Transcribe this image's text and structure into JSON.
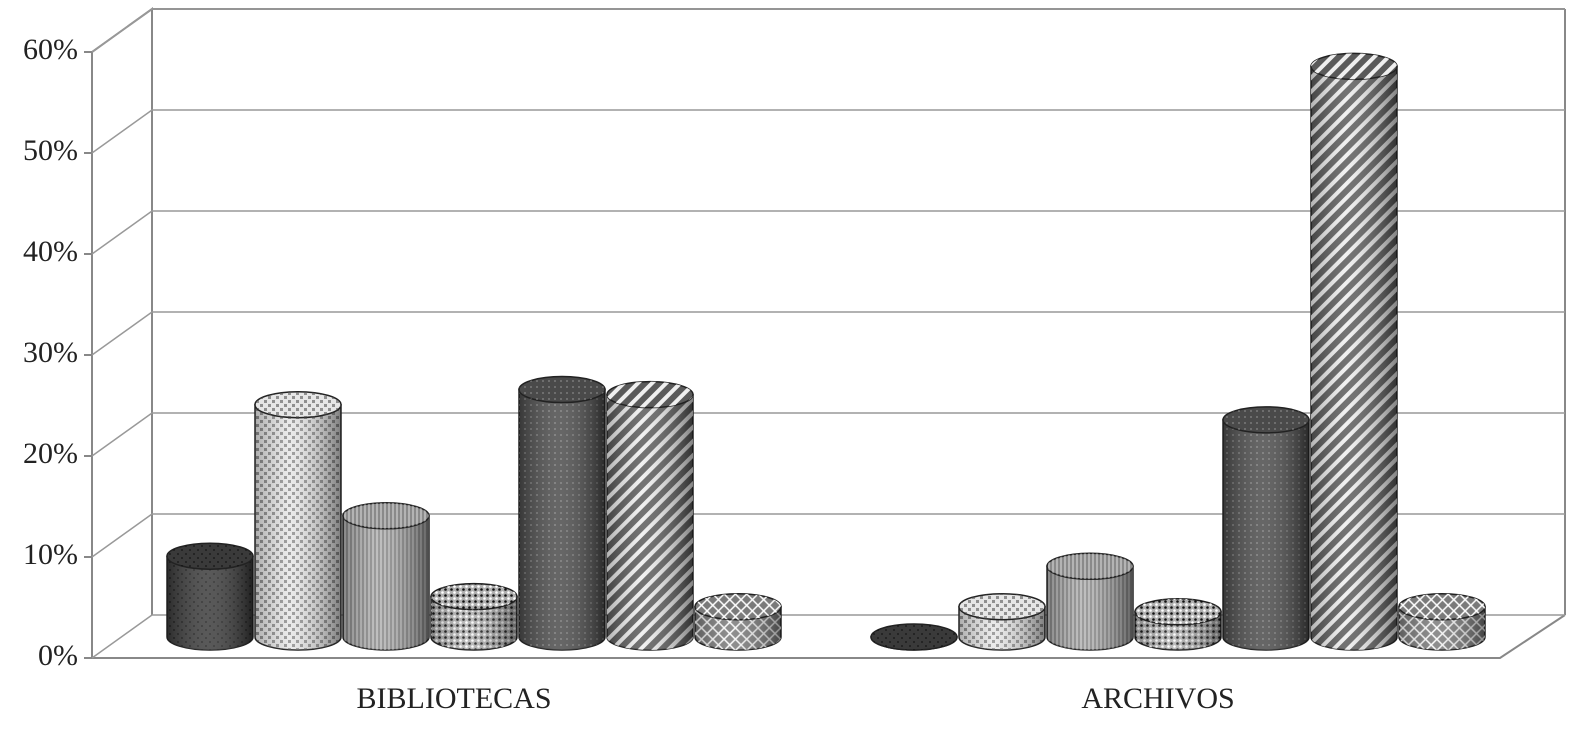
{
  "chart_data": {
    "type": "bar3d",
    "categories": [
      "BIBLIOTECAS",
      "ARCHIVOS"
    ],
    "series": [
      {
        "color": "#3a3a3a",
        "values": [
          8,
          0
        ]
      },
      {
        "color": "#e6e6e6",
        "values": [
          23,
          3
        ]
      },
      {
        "color": "#8a8a8a",
        "values": [
          12,
          7
        ]
      },
      {
        "color": "#b0b0b0",
        "values": [
          4,
          2.5
        ]
      },
      {
        "color": "#4a4a4a",
        "values": [
          24.5,
          21.5
        ]
      },
      {
        "color": "#5a5a5a",
        "values": [
          24,
          56.5
        ]
      },
      {
        "color": "#7a7a7a",
        "values": [
          3,
          3
        ]
      }
    ],
    "ylim": [
      0,
      60
    ],
    "yticks": [
      {
        "value": 0,
        "label": "0%"
      },
      {
        "value": 10,
        "label": "10%"
      },
      {
        "value": 20,
        "label": "20%"
      },
      {
        "value": 30,
        "label": "30%"
      },
      {
        "value": 40,
        "label": "40%"
      },
      {
        "value": 50,
        "label": "50%"
      },
      {
        "value": 60,
        "label": "60%"
      }
    ],
    "grid": true
  }
}
